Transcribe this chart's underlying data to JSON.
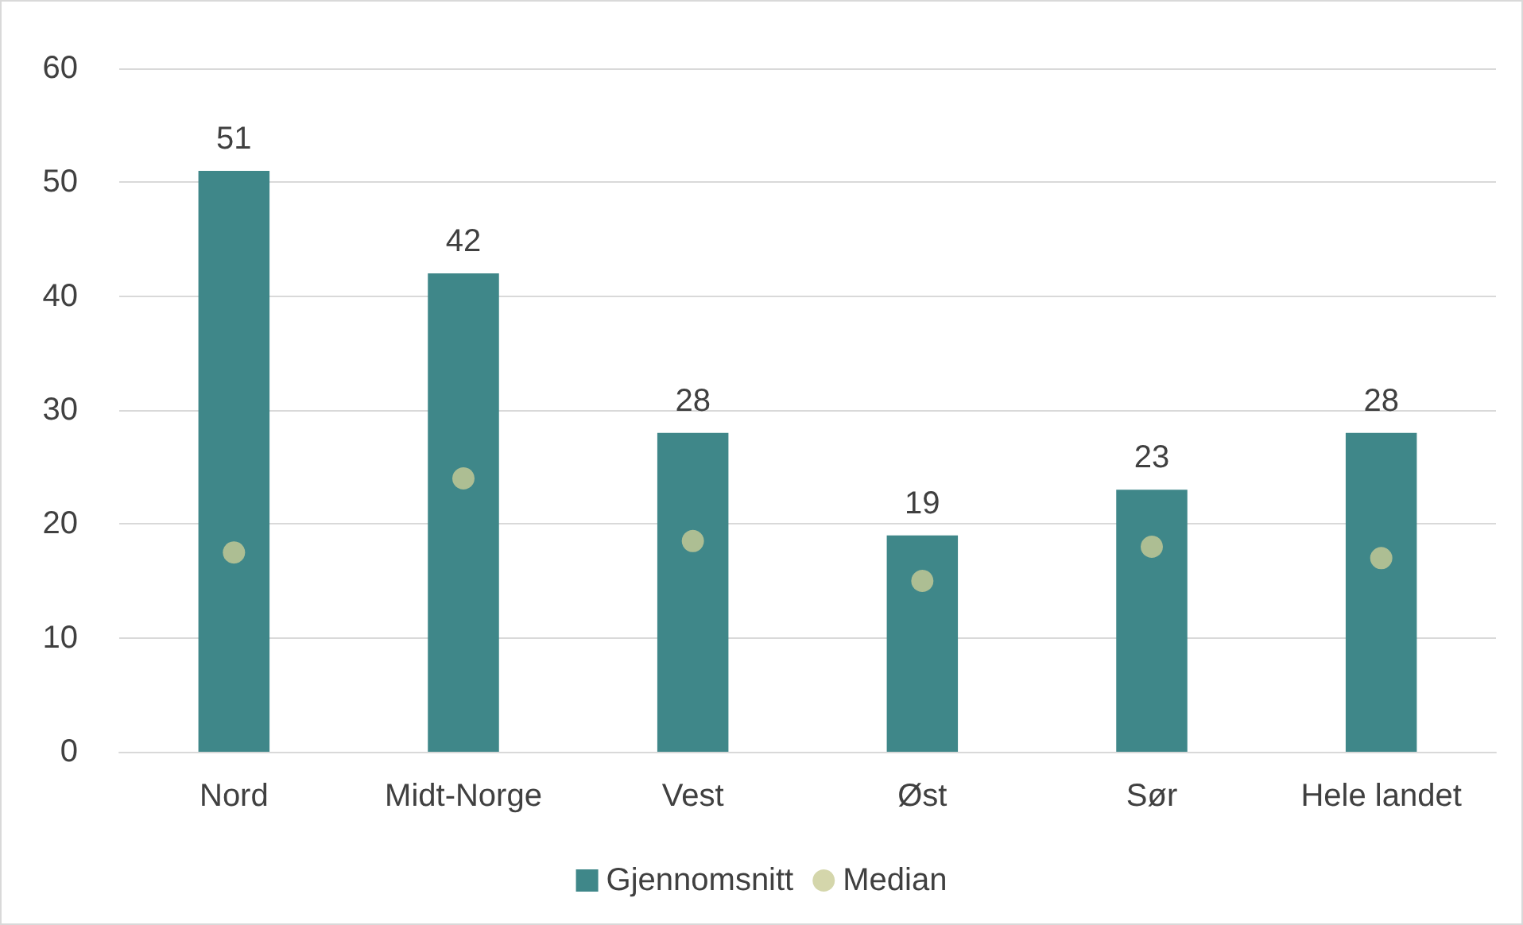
{
  "chart_data": {
    "type": "bar",
    "categories": [
      "Nord",
      "Midt-Norge",
      "Vest",
      "Øst",
      "Sør",
      "Hele landet"
    ],
    "series": [
      {
        "name": "Gjennomsnitt",
        "color": "#3f8789",
        "values": [
          51,
          42,
          28,
          19,
          23,
          28
        ],
        "data_labels": true
      },
      {
        "name": "Median",
        "type": "scatter",
        "color": "#c9cc96",
        "x": [
          "Nord",
          "Midt-Norge",
          "Vest",
          "Øst",
          "Sør",
          "Hele landet"
        ],
        "values": [
          17.5,
          24,
          18.5,
          15,
          18,
          17
        ],
        "marker": "circle"
      }
    ],
    "ylim": [
      0,
      60
    ],
    "yticks": [
      0,
      10,
      20,
      30,
      40,
      50,
      60
    ],
    "grid": "y",
    "legend": "bottom"
  }
}
